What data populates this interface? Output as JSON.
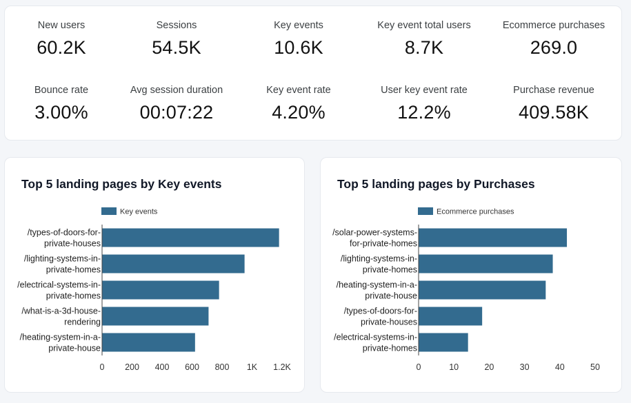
{
  "kpis": [
    {
      "label": "New users",
      "value": "60.2K"
    },
    {
      "label": "Sessions",
      "value": "54.5K"
    },
    {
      "label": "Key events",
      "value": "10.6K"
    },
    {
      "label": "Key event total users",
      "value": "8.7K"
    },
    {
      "label": "Ecommerce purchases",
      "value": "269.0"
    },
    {
      "label": "Bounce rate",
      "value": "3.00%"
    },
    {
      "label": "Avg session duration",
      "value": "00:07:22"
    },
    {
      "label": "Key event rate",
      "value": "4.20%"
    },
    {
      "label": "User key event rate",
      "value": "12.2%"
    },
    {
      "label": "Purchase revenue",
      "value": "409.58K"
    }
  ],
  "colors": {
    "bar": "#336b8f",
    "axis": "#444444",
    "text": "#202124"
  },
  "chart_data": [
    {
      "type": "bar",
      "orientation": "horizontal",
      "title": "Top 5 landing pages by Key events",
      "legend": "Key events",
      "legend_position": "top",
      "categories": [
        [
          "/types-of-doors-for-",
          "private-houses"
        ],
        [
          "/lighting-systems-in-",
          "private-homes"
        ],
        [
          "/electrical-systems-in-",
          "private-homes"
        ],
        [
          "/what-is-a-3d-house-",
          "rendering"
        ],
        [
          "/heating-system-in-a-",
          "private-house"
        ]
      ],
      "values": [
        1180,
        950,
        780,
        710,
        620
      ],
      "xlim": [
        0,
        1200
      ],
      "xticks": [
        0,
        200,
        400,
        600,
        800,
        1000,
        1200
      ],
      "xtick_labels": [
        "0",
        "200",
        "400",
        "600",
        "800",
        "1K",
        "1.2K"
      ]
    },
    {
      "type": "bar",
      "orientation": "horizontal",
      "title": "Top 5 landing pages by Purchases",
      "legend": "Ecommerce purchases",
      "legend_position": "top",
      "categories": [
        [
          "/solar-power-systems-",
          "for-private-homes"
        ],
        [
          "/lighting-systems-in-",
          "private-homes"
        ],
        [
          "/heating-system-in-a-",
          "private-house"
        ],
        [
          "/types-of-doors-for-",
          "private-houses"
        ],
        [
          "/electrical-systems-in-",
          "private-homes"
        ]
      ],
      "values": [
        42,
        38,
        36,
        18,
        14
      ],
      "xlim": [
        0,
        50
      ],
      "xticks": [
        0,
        10,
        20,
        30,
        40,
        50
      ],
      "xtick_labels": [
        "0",
        "10",
        "20",
        "30",
        "40",
        "50"
      ]
    }
  ]
}
